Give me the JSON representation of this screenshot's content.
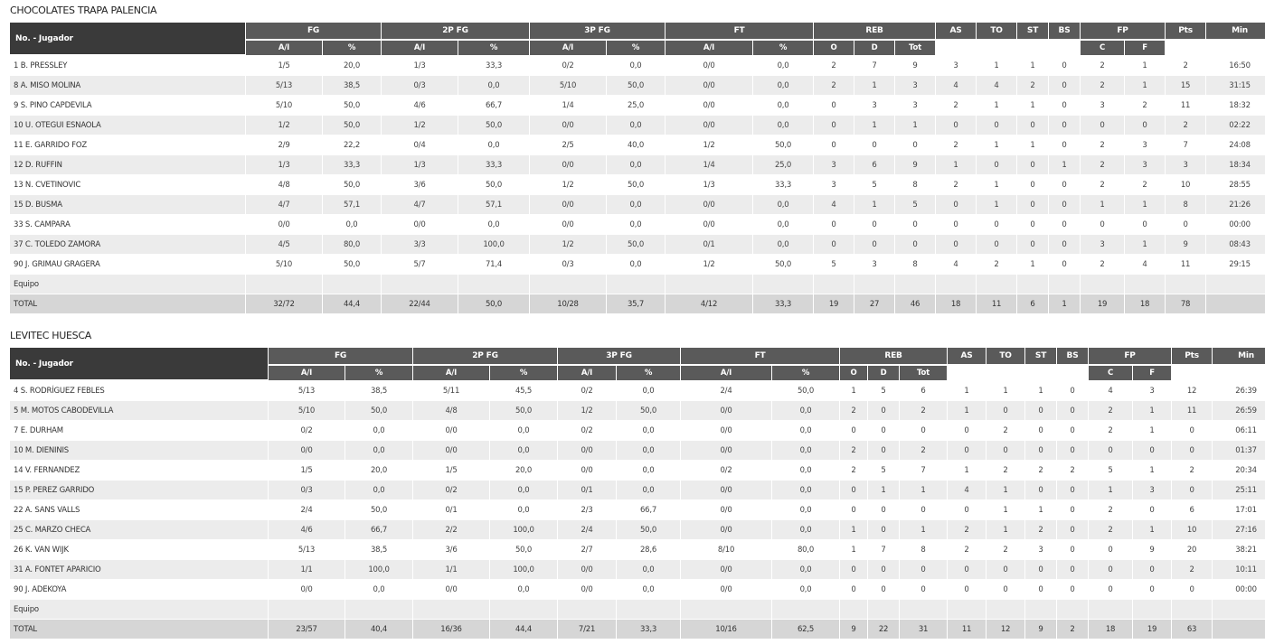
{
  "headers": {
    "player_col": "No. - Jugador",
    "groups": [
      "FG",
      "2P FG",
      "3P FG",
      "FT",
      "REB",
      "AS",
      "TO",
      "ST",
      "BS",
      "FP",
      "Pts",
      "Min"
    ],
    "sub": {
      "FG": [
        "A/I",
        "%"
      ],
      "2P FG": [
        "A/I",
        "%"
      ],
      "3P FG": [
        "A/I",
        "%"
      ],
      "FT": [
        "A/I",
        "%"
      ],
      "REB": [
        "O",
        "D",
        "Tot"
      ],
      "FP": [
        "C",
        "F"
      ]
    }
  },
  "teams": [
    {
      "name": "CHOCOLATES TRAPA PALENCIA",
      "rows": [
        [
          "1 B. PRESSLEY",
          "1/5",
          "20,0",
          "1/3",
          "33,3",
          "0/2",
          "0,0",
          "0/0",
          "0,0",
          "2",
          "7",
          "9",
          "3",
          "1",
          "1",
          "0",
          "2",
          "1",
          "2",
          "16:50"
        ],
        [
          "8 A. MISO MOLINA",
          "5/13",
          "38,5",
          "0/3",
          "0,0",
          "5/10",
          "50,0",
          "0/0",
          "0,0",
          "2",
          "1",
          "3",
          "4",
          "4",
          "2",
          "0",
          "2",
          "1",
          "15",
          "31:15"
        ],
        [
          "9 S. PINO CAPDEVILA",
          "5/10",
          "50,0",
          "4/6",
          "66,7",
          "1/4",
          "25,0",
          "0/0",
          "0,0",
          "0",
          "3",
          "3",
          "2",
          "1",
          "1",
          "0",
          "3",
          "2",
          "11",
          "18:32"
        ],
        [
          "10 U. OTEGUI ESNAOLA",
          "1/2",
          "50,0",
          "1/2",
          "50,0",
          "0/0",
          "0,0",
          "0/0",
          "0,0",
          "0",
          "1",
          "1",
          "0",
          "0",
          "0",
          "0",
          "0",
          "0",
          "2",
          "02:22"
        ],
        [
          "11 E. GARRIDO FOZ",
          "2/9",
          "22,2",
          "0/4",
          "0,0",
          "2/5",
          "40,0",
          "1/2",
          "50,0",
          "0",
          "0",
          "0",
          "2",
          "1",
          "1",
          "0",
          "2",
          "3",
          "7",
          "24:08"
        ],
        [
          "12 D. RUFFIN",
          "1/3",
          "33,3",
          "1/3",
          "33,3",
          "0/0",
          "0,0",
          "1/4",
          "25,0",
          "3",
          "6",
          "9",
          "1",
          "0",
          "0",
          "1",
          "2",
          "3",
          "3",
          "18:34"
        ],
        [
          "13 N. CVETINOVIC",
          "4/8",
          "50,0",
          "3/6",
          "50,0",
          "1/2",
          "50,0",
          "1/3",
          "33,3",
          "3",
          "5",
          "8",
          "2",
          "1",
          "0",
          "0",
          "2",
          "2",
          "10",
          "28:55"
        ],
        [
          "15 D. BUSMA",
          "4/7",
          "57,1",
          "4/7",
          "57,1",
          "0/0",
          "0,0",
          "0/0",
          "0,0",
          "4",
          "1",
          "5",
          "0",
          "1",
          "0",
          "0",
          "1",
          "1",
          "8",
          "21:26"
        ],
        [
          "33 S. CAMPARA",
          "0/0",
          "0,0",
          "0/0",
          "0,0",
          "0/0",
          "0,0",
          "0/0",
          "0,0",
          "0",
          "0",
          "0",
          "0",
          "0",
          "0",
          "0",
          "0",
          "0",
          "0",
          "00:00"
        ],
        [
          "37 C. TOLEDO ZAMORA",
          "4/5",
          "80,0",
          "3/3",
          "100,0",
          "1/2",
          "50,0",
          "0/1",
          "0,0",
          "0",
          "0",
          "0",
          "0",
          "0",
          "0",
          "0",
          "3",
          "1",
          "9",
          "08:43"
        ],
        [
          "90 J. GRIMAU GRAGERA",
          "5/10",
          "50,0",
          "5/7",
          "71,4",
          "0/3",
          "0,0",
          "1/2",
          "50,0",
          "5",
          "3",
          "8",
          "4",
          "2",
          "1",
          "0",
          "2",
          "4",
          "11",
          "29:15"
        ]
      ],
      "equipo": "Equipo",
      "total": [
        "TOTAL",
        "32/72",
        "44,4",
        "22/44",
        "50,0",
        "10/28",
        "35,7",
        "4/12",
        "33,3",
        "19",
        "27",
        "46",
        "18",
        "11",
        "6",
        "1",
        "19",
        "18",
        "78",
        ""
      ]
    },
    {
      "name": "LEVITEC HUESCA",
      "rows": [
        [
          "4 S. RODRÍGUEZ FEBLES",
          "5/13",
          "38,5",
          "5/11",
          "45,5",
          "0/2",
          "0,0",
          "2/4",
          "50,0",
          "1",
          "5",
          "6",
          "1",
          "1",
          "1",
          "0",
          "4",
          "3",
          "12",
          "26:39"
        ],
        [
          "5 M. MOTOS CABODEVILLA",
          "5/10",
          "50,0",
          "4/8",
          "50,0",
          "1/2",
          "50,0",
          "0/0",
          "0,0",
          "2",
          "0",
          "2",
          "1",
          "0",
          "0",
          "0",
          "2",
          "1",
          "11",
          "26:59"
        ],
        [
          "7 E. DURHAM",
          "0/2",
          "0,0",
          "0/0",
          "0,0",
          "0/2",
          "0,0",
          "0/0",
          "0,0",
          "0",
          "0",
          "0",
          "0",
          "2",
          "0",
          "0",
          "2",
          "1",
          "0",
          "06:11"
        ],
        [
          "10 M. DIENINIS",
          "0/0",
          "0,0",
          "0/0",
          "0,0",
          "0/0",
          "0,0",
          "0/0",
          "0,0",
          "2",
          "0",
          "2",
          "0",
          "0",
          "0",
          "0",
          "0",
          "0",
          "0",
          "01:37"
        ],
        [
          "14 V. FERNANDEZ",
          "1/5",
          "20,0",
          "1/5",
          "20,0",
          "0/0",
          "0,0",
          "0/2",
          "0,0",
          "2",
          "5",
          "7",
          "1",
          "2",
          "2",
          "2",
          "5",
          "1",
          "2",
          "20:34"
        ],
        [
          "15 P. PEREZ GARRIDO",
          "0/3",
          "0,0",
          "0/2",
          "0,0",
          "0/1",
          "0,0",
          "0/0",
          "0,0",
          "0",
          "1",
          "1",
          "4",
          "1",
          "0",
          "0",
          "1",
          "3",
          "0",
          "25:11"
        ],
        [
          "22 A. SANS VALLS",
          "2/4",
          "50,0",
          "0/1",
          "0,0",
          "2/3",
          "66,7",
          "0/0",
          "0,0",
          "0",
          "0",
          "0",
          "0",
          "1",
          "1",
          "0",
          "2",
          "0",
          "6",
          "17:01"
        ],
        [
          "25 C. MARZO CHECA",
          "4/6",
          "66,7",
          "2/2",
          "100,0",
          "2/4",
          "50,0",
          "0/0",
          "0,0",
          "1",
          "0",
          "1",
          "2",
          "1",
          "2",
          "0",
          "2",
          "1",
          "10",
          "27:16"
        ],
        [
          "26 K. VAN WIJK",
          "5/13",
          "38,5",
          "3/6",
          "50,0",
          "2/7",
          "28,6",
          "8/10",
          "80,0",
          "1",
          "7",
          "8",
          "2",
          "2",
          "3",
          "0",
          "0",
          "9",
          "20",
          "38:21"
        ],
        [
          "31 A. FONTET APARICIO",
          "1/1",
          "100,0",
          "1/1",
          "100,0",
          "0/0",
          "0,0",
          "0/0",
          "0,0",
          "0",
          "0",
          "0",
          "0",
          "0",
          "0",
          "0",
          "0",
          "0",
          "2",
          "10:11"
        ],
        [
          "90 J. ADEKOYA",
          "0/0",
          "0,0",
          "0/0",
          "0,0",
          "0/0",
          "0,0",
          "0/0",
          "0,0",
          "0",
          "0",
          "0",
          "0",
          "0",
          "0",
          "0",
          "0",
          "0",
          "0",
          "00:00"
        ]
      ],
      "equipo": "Equipo",
      "total": [
        "TOTAL",
        "23/57",
        "40,4",
        "16/36",
        "44,4",
        "7/21",
        "33,3",
        "10/16",
        "62,5",
        "9",
        "22",
        "31",
        "11",
        "12",
        "9",
        "2",
        "18",
        "19",
        "63",
        ""
      ]
    }
  ]
}
